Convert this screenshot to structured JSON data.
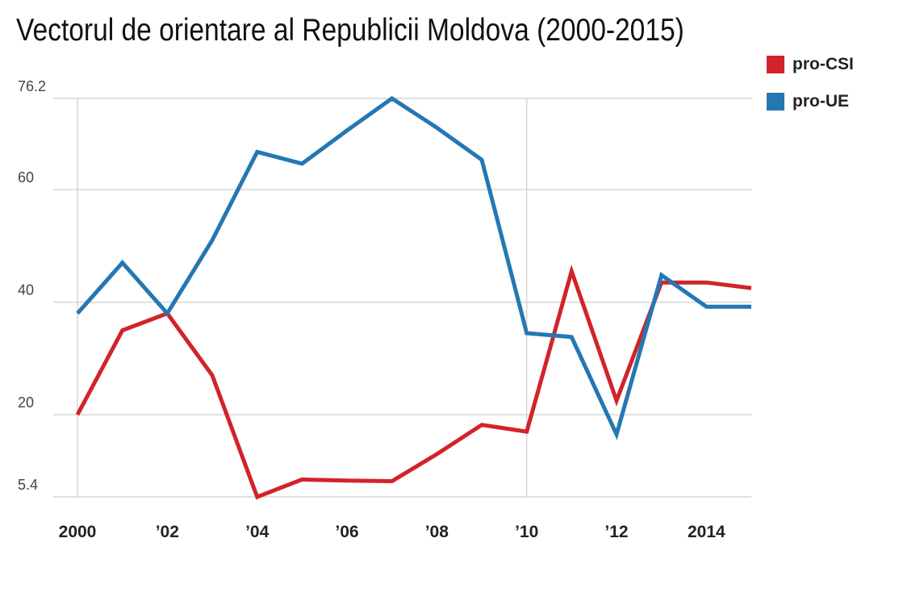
{
  "chart_data": {
    "type": "line",
    "title": "Vectorul de orientare al Republicii Moldova (2000-2015)",
    "x": [
      2000,
      2001,
      2002,
      2003,
      2004,
      2005,
      2006,
      2007,
      2008,
      2009,
      2010,
      2011,
      2012,
      2013,
      2014,
      2015
    ],
    "x_tick_values": [
      2000,
      2002,
      2004,
      2006,
      2008,
      2010,
      2012,
      2014
    ],
    "x_tick_labels": [
      "2000",
      "’02",
      "’04",
      "’06",
      "’08",
      "’10",
      "’12",
      "2014"
    ],
    "y_tick_values": [
      5.4,
      20,
      40,
      60,
      76.2
    ],
    "y_tick_labels": [
      "5.4",
      "20",
      "40",
      "60",
      "76.2"
    ],
    "xlim": [
      2000,
      2015
    ],
    "ylim": [
      5.4,
      76.2
    ],
    "grid": true,
    "legend_position": "top-right",
    "series": [
      {
        "name": "pro-CSI",
        "color": "#d2232a",
        "values": [
          20,
          35,
          38,
          27,
          5.4,
          8.5,
          8.3,
          8.2,
          13,
          18.2,
          17,
          45.5,
          22.5,
          43.5,
          43.5,
          42.5
        ]
      },
      {
        "name": "pro-UE",
        "color": "#2477b3",
        "values": [
          38,
          47,
          38,
          51,
          66.7,
          64.6,
          70.5,
          76.2,
          71,
          65.3,
          34.5,
          33.8,
          16.5,
          44.8,
          39.2,
          39.2
        ]
      }
    ]
  }
}
